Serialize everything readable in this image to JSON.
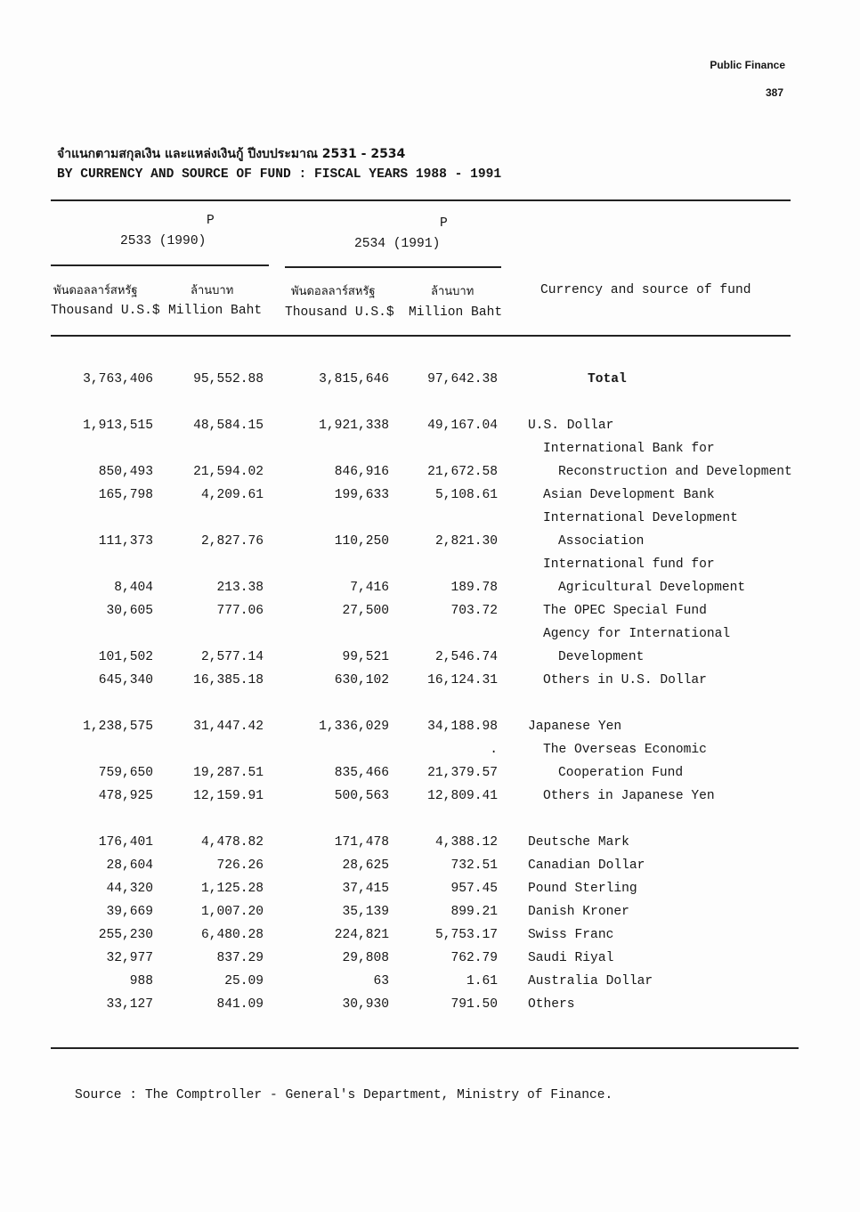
{
  "page_header": {
    "section": "Public Finance",
    "page_number": "387"
  },
  "title": {
    "thai": "จำแนกตามสกุลเงิน และแหล่งเงินกู้ ปีงบประมาณ 2531 - 2534",
    "english": "BY CURRENCY AND SOURCE OF FUND : FISCAL YEARS 1988 - 1991"
  },
  "columns": {
    "year1": {
      "mark": "P",
      "label": "2533 (1990)"
    },
    "year2": {
      "mark": "P",
      "label": "2534 (1991)"
    },
    "sub": [
      {
        "thai": "พันดอลลาร์สหรัฐ",
        "english": "Thousand U.S.$"
      },
      {
        "thai": "ล้านบาท",
        "english": "Million Baht"
      },
      {
        "thai": "พันดอลลาร์สหรัฐ",
        "english": "Thousand U.S.$"
      },
      {
        "thai": "ล้านบาท",
        "english": "Million Baht"
      }
    ],
    "label_header": "Currency and source of fund"
  },
  "rows": [
    {
      "values": [
        "3,763,406",
        "95,552.88",
        "3,815,646",
        "97,642.38"
      ],
      "label": "Total",
      "level": "total"
    },
    {
      "spacer": true
    },
    {
      "values": [
        "1,913,515",
        "48,584.15",
        "1,921,338",
        "49,167.04"
      ],
      "label": "U.S. Dollar",
      "level": 0
    },
    {
      "values": [
        "",
        "",
        "",
        ""
      ],
      "label": "International Bank for",
      "level": 1
    },
    {
      "values": [
        "850,493",
        "21,594.02",
        "846,916",
        "21,672.58"
      ],
      "label": "Reconstruction and Development",
      "level": 2
    },
    {
      "values": [
        "165,798",
        "4,209.61",
        "199,633",
        "5,108.61"
      ],
      "label": "Asian Development Bank",
      "level": 1
    },
    {
      "values": [
        "",
        "",
        "",
        ""
      ],
      "label": "International Development",
      "level": 1
    },
    {
      "values": [
        "111,373",
        "2,827.76",
        "110,250",
        "2,821.30"
      ],
      "label": "Association",
      "level": 2
    },
    {
      "values": [
        "",
        "",
        "",
        ""
      ],
      "label": "International fund for",
      "level": 1
    },
    {
      "values": [
        "8,404",
        "213.38",
        "7,416",
        "189.78"
      ],
      "label": "Agricultural Development",
      "level": 2
    },
    {
      "values": [
        "30,605",
        "777.06",
        "27,500",
        "703.72"
      ],
      "label": "The OPEC Special Fund",
      "level": 1
    },
    {
      "values": [
        "",
        "",
        "",
        ""
      ],
      "label": "Agency for International",
      "level": 1
    },
    {
      "values": [
        "101,502",
        "2,577.14",
        "99,521",
        "2,546.74"
      ],
      "label": "Development",
      "level": 2
    },
    {
      "values": [
        "645,340",
        "16,385.18",
        "630,102",
        "16,124.31"
      ],
      "label": "Others in U.S. Dollar",
      "level": 1
    },
    {
      "spacer": true
    },
    {
      "values": [
        "1,238,575",
        "31,447.42",
        "1,336,029",
        "34,188.98"
      ],
      "label": "Japanese Yen",
      "level": 0
    },
    {
      "values": [
        "",
        "",
        "",
        "."
      ],
      "label": "The Overseas Economic",
      "level": 1
    },
    {
      "values": [
        "759,650",
        "19,287.51",
        "835,466",
        "21,379.57"
      ],
      "label": "Cooperation Fund",
      "level": 2
    },
    {
      "values": [
        "478,925",
        "12,159.91",
        "500,563",
        "12,809.41"
      ],
      "label": "Others in Japanese Yen",
      "level": 1
    },
    {
      "spacer": true
    },
    {
      "values": [
        "176,401",
        "4,478.82",
        "171,478",
        "4,388.12"
      ],
      "label": "Deutsche Mark",
      "level": 0
    },
    {
      "values": [
        "28,604",
        "726.26",
        "28,625",
        "732.51"
      ],
      "label": "Canadian Dollar",
      "level": 0
    },
    {
      "values": [
        "44,320",
        "1,125.28",
        "37,415",
        "957.45"
      ],
      "label": "Pound Sterling",
      "level": 0
    },
    {
      "values": [
        "39,669",
        "1,007.20",
        "35,139",
        "899.21"
      ],
      "label": "Danish Kroner",
      "level": 0
    },
    {
      "values": [
        "255,230",
        "6,480.28",
        "224,821",
        "5,753.17"
      ],
      "label": "Swiss Franc",
      "level": 0
    },
    {
      "values": [
        "32,977",
        "837.29",
        "29,808",
        "762.79"
      ],
      "label": "Saudi Riyal",
      "level": 0
    },
    {
      "values": [
        "988",
        "25.09",
        "63",
        "1.61"
      ],
      "label": "Australia Dollar",
      "level": 0
    },
    {
      "values": [
        "33,127",
        "841.09",
        "30,930",
        "791.50"
      ],
      "label": "Others",
      "level": 0
    }
  ],
  "source": "Source : The Comptroller - General's Department, Ministry of Finance."
}
